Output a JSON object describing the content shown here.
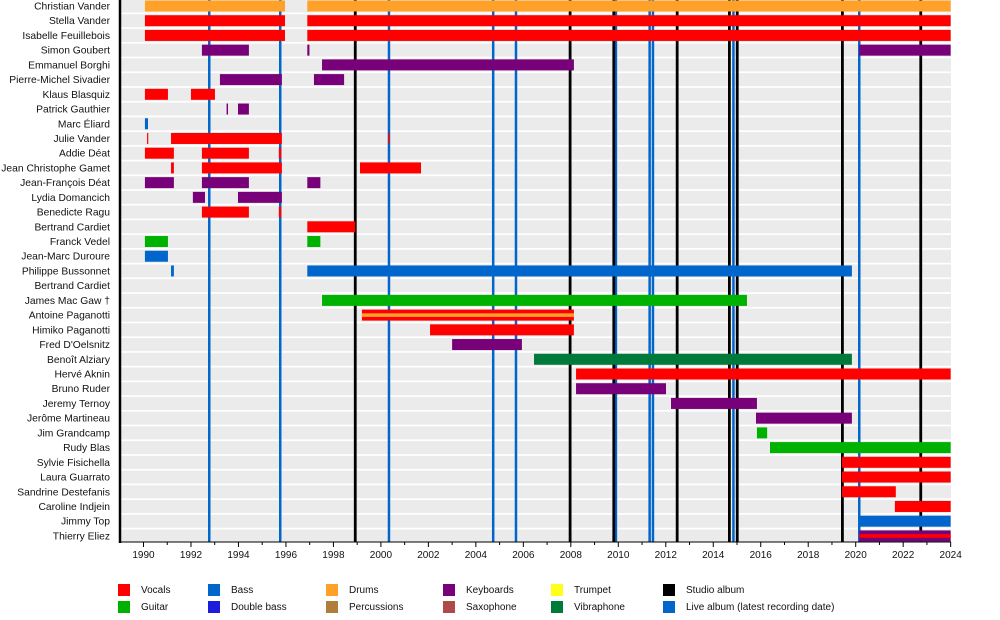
{
  "chart_data": {
    "type": "timeline",
    "xlim": [
      1989,
      2024
    ],
    "x_tick_labels": [
      "1990",
      "1992",
      "1994",
      "1996",
      "1998",
      "2000",
      "2002",
      "2004",
      "2006",
      "2008",
      "2010",
      "2012",
      "2014",
      "2016",
      "2018",
      "2020",
      "2022",
      "2024"
    ],
    "grid": false,
    "legend_placement": "bottom",
    "colors": {
      "Vocals": "#ff0000",
      "Guitar": "#00b200",
      "Bass": "#0066cc",
      "Double bass": "#1c1cdc",
      "Drums": "#ffa028",
      "Percussions": "#b07d3a",
      "Keyboards": "#780078",
      "Saxophone": "#b04a4a",
      "Trumpet": "#ffff1a",
      "Vibraphone": "#007a3a",
      "Studio album": "#000000",
      "Live album (latest recording date)": "#0066cc"
    },
    "members": [
      {
        "name": "Christian Vander",
        "periods": [
          {
            "role": "Drums",
            "start": 1990.06,
            "end": 1995.96
          },
          {
            "role": "Drums",
            "start": 1996.9,
            "end": 2024
          }
        ]
      },
      {
        "name": "Stella Vander",
        "periods": [
          {
            "role": "Vocals",
            "start": 1990.06,
            "end": 1995.96
          },
          {
            "role": "Vocals",
            "start": 1996.9,
            "end": 2024
          }
        ]
      },
      {
        "name": "Isabelle Feuillebois",
        "periods": [
          {
            "role": "Vocals",
            "start": 1990.06,
            "end": 1995.96
          },
          {
            "role": "Vocals",
            "start": 1996.9,
            "end": 2024
          }
        ]
      },
      {
        "name": "Simon Goubert",
        "periods": [
          {
            "role": "Keyboards",
            "start": 1992.46,
            "end": 1994.44
          },
          {
            "role": "Keyboards",
            "start": 1996.9,
            "end": 1996.99
          },
          {
            "role": "Keyboards",
            "start": 2020.15,
            "end": 2024
          }
        ]
      },
      {
        "name": "Emmanuel Borghi",
        "periods": [
          {
            "role": "Keyboards",
            "start": 1997.52,
            "end": 2008.13
          }
        ]
      },
      {
        "name": "Pierre-Michel Sivadier",
        "periods": [
          {
            "role": "Keyboards",
            "start": 1993.22,
            "end": 1995.83
          },
          {
            "role": "Keyboards",
            "start": 1997.18,
            "end": 1998.45
          }
        ]
      },
      {
        "name": "Klaus Blasquiz",
        "periods": [
          {
            "role": "Vocals",
            "start": 1990.06,
            "end": 1991.03
          },
          {
            "role": "Vocals",
            "start": 1992.0,
            "end": 1993.01
          }
        ]
      },
      {
        "name": "Patrick Gauthier",
        "periods": [
          {
            "role": "Keyboards",
            "start": 1993.5,
            "end": 1993.56
          },
          {
            "role": "Keyboards",
            "start": 1993.98,
            "end": 1994.44
          }
        ]
      },
      {
        "name": "Marc Éliard",
        "periods": [
          {
            "role": "Bass",
            "start": 1990.06,
            "end": 1990.19
          }
        ]
      },
      {
        "name": "Julie Vander",
        "periods": [
          {
            "role": "Vocals",
            "start": 1990.15,
            "end": 1990.2
          },
          {
            "role": "Vocals",
            "start": 1991.16,
            "end": 1995.83
          },
          {
            "role": "Vocals",
            "start": 2000.3,
            "end": 2000.36
          }
        ]
      },
      {
        "name": "Addie Déat",
        "periods": [
          {
            "role": "Vocals",
            "start": 1990.06,
            "end": 1991.28
          },
          {
            "role": "Vocals",
            "start": 1992.46,
            "end": 1994.44
          },
          {
            "role": "Vocals",
            "start": 1995.7,
            "end": 1995.8
          }
        ]
      },
      {
        "name": "Jean Christophe Gamet",
        "periods": [
          {
            "role": "Vocals",
            "start": 1991.16,
            "end": 1991.28
          },
          {
            "role": "Vocals",
            "start": 1992.46,
            "end": 1995.83
          },
          {
            "role": "Vocals",
            "start": 1999.12,
            "end": 2001.69
          }
        ]
      },
      {
        "name": "Jean-François Déat",
        "periods": [
          {
            "role": "Keyboards",
            "start": 1990.06,
            "end": 1991.28
          },
          {
            "role": "Keyboards",
            "start": 1992.46,
            "end": 1994.44
          },
          {
            "role": "Keyboards",
            "start": 1996.9,
            "end": 1997.45
          }
        ]
      },
      {
        "name": "Lydia Domancich",
        "periods": [
          {
            "role": "Keyboards",
            "start": 1992.08,
            "end": 1992.59
          },
          {
            "role": "Keyboards",
            "start": 1993.98,
            "end": 1995.83
          }
        ]
      },
      {
        "name": "Benedicte Ragu",
        "periods": [
          {
            "role": "Vocals",
            "start": 1992.46,
            "end": 1994.44
          },
          {
            "role": "Vocals",
            "start": 1995.7,
            "end": 1995.8
          }
        ]
      },
      {
        "name": "Bertrand Cardiet",
        "periods": [
          {
            "role": "Vocals",
            "start": 1996.9,
            "end": 1998.92
          }
        ]
      },
      {
        "name": "Franck Vedel",
        "periods": [
          {
            "role": "Guitar",
            "start": 1990.06,
            "end": 1991.03
          },
          {
            "role": "Guitar",
            "start": 1996.9,
            "end": 1997.45
          }
        ]
      },
      {
        "name": "Jean-Marc Duroure",
        "periods": [
          {
            "role": "Bass",
            "start": 1990.06,
            "end": 1991.03
          }
        ]
      },
      {
        "name": "Philippe Bussonnet",
        "periods": [
          {
            "role": "Bass",
            "start": 1991.16,
            "end": 1991.28
          },
          {
            "role": "Bass",
            "start": 1996.9,
            "end": 2019.84
          }
        ]
      },
      {
        "name": "Bertrand Cardiet",
        "periods": []
      },
      {
        "name": "James Mac Gaw  †",
        "periods": [
          {
            "role": "Guitar",
            "start": 1997.52,
            "end": 2015.42
          }
        ]
      },
      {
        "name": "Antoine Paganotti",
        "periods": [
          {
            "role": "Vocals",
            "secondary": "Drums",
            "start": 1999.2,
            "end": 2008.13
          }
        ]
      },
      {
        "name": "Himiko Paganotti",
        "periods": [
          {
            "role": "Vocals",
            "start": 2002.07,
            "end": 2008.13
          }
        ]
      },
      {
        "name": "Fred D'Oelsnitz",
        "periods": [
          {
            "role": "Keyboards",
            "start": 2003.0,
            "end": 2005.94
          }
        ]
      },
      {
        "name": "Benoît Alziary",
        "periods": [
          {
            "role": "Vibraphone",
            "start": 2006.45,
            "end": 2019.84
          }
        ]
      },
      {
        "name": "Hervé Aknin",
        "periods": [
          {
            "role": "Vocals",
            "start": 2008.22,
            "end": 2024
          }
        ]
      },
      {
        "name": "Bruno Ruder",
        "periods": [
          {
            "role": "Keyboards",
            "start": 2008.22,
            "end": 2012.01
          }
        ]
      },
      {
        "name": "Jeremy Ternoy",
        "periods": [
          {
            "role": "Keyboards",
            "start": 2012.22,
            "end": 2015.84
          }
        ]
      },
      {
        "name": "Jerôme Martineau",
        "periods": [
          {
            "role": "Keyboards",
            "start": 2015.8,
            "end": 2019.84
          }
        ]
      },
      {
        "name": "Jim Grandcamp",
        "periods": [
          {
            "role": "Guitar",
            "start": 2015.84,
            "end": 2016.27
          }
        ]
      },
      {
        "name": "Rudy Blas",
        "periods": [
          {
            "role": "Guitar",
            "start": 2016.39,
            "end": 2024
          }
        ]
      },
      {
        "name": "Sylvie Fisichella",
        "periods": [
          {
            "role": "Vocals",
            "start": 2019.42,
            "end": 2024
          }
        ]
      },
      {
        "name": "Laura Guarrato",
        "periods": [
          {
            "role": "Vocals",
            "start": 2019.42,
            "end": 2024
          }
        ]
      },
      {
        "name": "Sandrine Destefanis",
        "periods": [
          {
            "role": "Vocals",
            "start": 2019.42,
            "end": 2021.69
          }
        ]
      },
      {
        "name": "Caroline Indjein",
        "periods": [
          {
            "role": "Vocals",
            "start": 2021.65,
            "end": 2024
          }
        ]
      },
      {
        "name": "Jimmy Top",
        "periods": [
          {
            "role": "Bass",
            "start": 2020.15,
            "end": 2024
          }
        ]
      },
      {
        "name": "Thierry Eliez",
        "periods": [
          {
            "role": "Keyboards",
            "secondary": "Vocals",
            "start": 2020.15,
            "end": 2024
          }
        ]
      }
    ],
    "studio_albums": [
      1998.92,
      2007.97,
      2009.81,
      2012.48,
      2014.68,
      2015.01,
      2019.44,
      2022.74
    ],
    "live_albums": [
      1992.77,
      1995.76,
      2000.34,
      2004.73,
      2005.69,
      2009.9,
      2011.32,
      2011.46,
      2014.85,
      2020.15
    ]
  },
  "legend": [
    {
      "label": "Vocals",
      "color": "#ff0000"
    },
    {
      "label": "Guitar",
      "color": "#00b200"
    },
    {
      "label": "Bass",
      "color": "#0066cc"
    },
    {
      "label": "Double bass",
      "color": "#1c1cdc"
    },
    {
      "label": "Drums",
      "color": "#ffa028"
    },
    {
      "label": "Percussions",
      "color": "#b07d3a"
    },
    {
      "label": "Keyboards",
      "color": "#780078"
    },
    {
      "label": "Saxophone",
      "color": "#b04a4a"
    },
    {
      "label": "Trumpet",
      "color": "#ffff1a"
    },
    {
      "label": "Vibraphone",
      "color": "#007a3a"
    },
    {
      "label": "Studio album",
      "color": "#000000"
    },
    {
      "label": "Live album (latest recording date)",
      "color": "#0066cc"
    }
  ]
}
